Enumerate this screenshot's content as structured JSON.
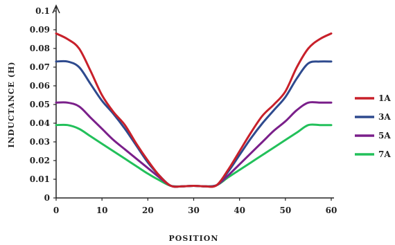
{
  "chart_data": {
    "type": "line",
    "xlabel": "POSITION",
    "ylabel": "INDUCTANCE (H)",
    "xlim": [
      0,
      60
    ],
    "ylim": [
      0,
      0.1
    ],
    "xticks": [
      "0",
      "10",
      "20",
      "30",
      "40",
      "50",
      "60"
    ],
    "yticks": [
      "0",
      "0.01",
      "0.02",
      "0.03",
      "0.04",
      "0.05",
      "0.06",
      "0.07",
      "0.08",
      "0.09",
      "0.1"
    ],
    "grid": false,
    "legend_position": "right",
    "series": [
      {
        "name": "1A",
        "color": "#c8202a",
        "x": [
          0,
          2.5,
          5,
          7.5,
          10,
          12.5,
          15,
          17.5,
          20,
          22.5,
          25,
          27.5,
          30,
          32.5,
          35,
          37.5,
          40,
          42.5,
          45,
          47.5,
          50,
          52.5,
          55,
          57.5,
          60
        ],
        "y": [
          0.088,
          0.085,
          0.08,
          0.068,
          0.055,
          0.046,
          0.039,
          0.029,
          0.02,
          0.012,
          0.0065,
          0.0062,
          0.0065,
          0.0062,
          0.0068,
          0.015,
          0.025,
          0.035,
          0.044,
          0.05,
          0.057,
          0.07,
          0.08,
          0.085,
          0.088
        ]
      },
      {
        "name": "3A",
        "color": "#2e4a8e",
        "x": [
          0,
          2.5,
          5,
          7.5,
          10,
          12.5,
          15,
          17.5,
          20,
          22.5,
          25,
          27.5,
          30,
          32.5,
          35,
          37.5,
          40,
          42.5,
          45,
          47.5,
          50,
          52.5,
          55,
          57.5,
          60
        ],
        "y": [
          0.073,
          0.073,
          0.07,
          0.061,
          0.052,
          0.045,
          0.037,
          0.028,
          0.019,
          0.012,
          0.0065,
          0.0062,
          0.0065,
          0.0062,
          0.0068,
          0.014,
          0.023,
          0.032,
          0.04,
          0.047,
          0.054,
          0.064,
          0.072,
          0.073,
          0.073
        ]
      },
      {
        "name": "5A",
        "color": "#7a1f8a",
        "x": [
          0,
          2.5,
          5,
          7.5,
          10,
          12.5,
          15,
          17.5,
          20,
          22.5,
          25,
          27.5,
          30,
          32.5,
          35,
          37.5,
          40,
          42.5,
          45,
          47.5,
          50,
          52.5,
          55,
          57.5,
          60
        ],
        "y": [
          0.051,
          0.051,
          0.049,
          0.043,
          0.037,
          0.031,
          0.026,
          0.021,
          0.016,
          0.011,
          0.0065,
          0.0062,
          0.0065,
          0.0062,
          0.0068,
          0.012,
          0.018,
          0.024,
          0.03,
          0.036,
          0.041,
          0.047,
          0.051,
          0.051,
          0.051
        ]
      },
      {
        "name": "7A",
        "color": "#22c05a",
        "x": [
          0,
          2.5,
          5,
          7.5,
          10,
          12.5,
          15,
          17.5,
          20,
          22.5,
          25,
          27.5,
          30,
          32.5,
          35,
          37.5,
          40,
          42.5,
          45,
          47.5,
          50,
          52.5,
          55,
          57.5,
          60
        ],
        "y": [
          0.039,
          0.039,
          0.037,
          0.033,
          0.029,
          0.025,
          0.021,
          0.017,
          0.013,
          0.0095,
          0.0065,
          0.0062,
          0.0065,
          0.0062,
          0.0068,
          0.011,
          0.015,
          0.019,
          0.023,
          0.027,
          0.031,
          0.035,
          0.039,
          0.039,
          0.039
        ]
      }
    ]
  }
}
